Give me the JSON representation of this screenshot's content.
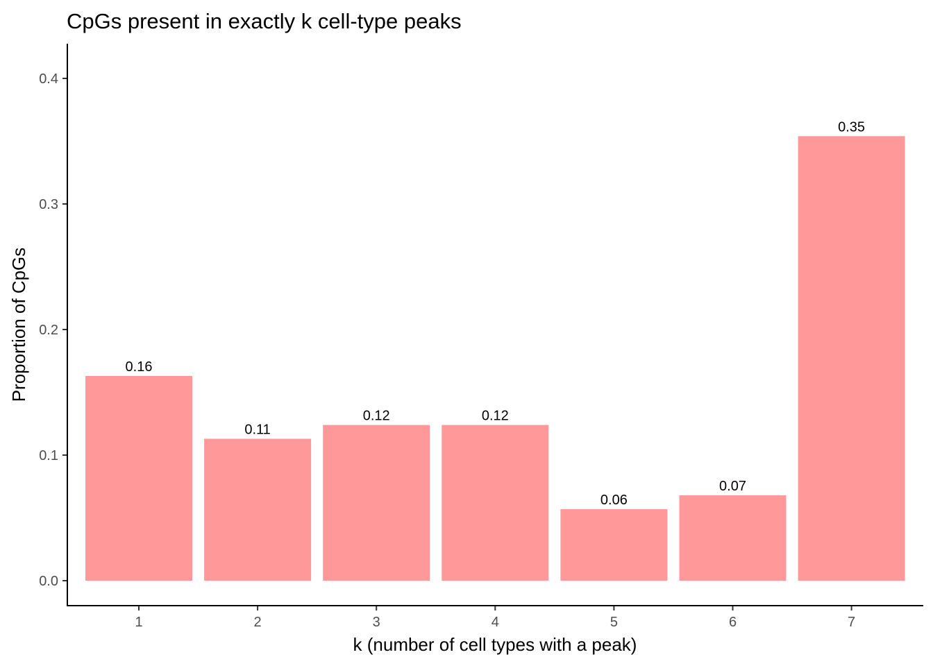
{
  "chart_data": {
    "type": "bar",
    "title": "CpGs present in exactly k cell-type peaks",
    "xlabel": "k (number of cell types with a peak)",
    "ylabel": "Proportion of CpGs",
    "categories": [
      "1",
      "2",
      "3",
      "4",
      "5",
      "6",
      "7"
    ],
    "values": [
      0.163,
      0.113,
      0.124,
      0.124,
      0.057,
      0.068,
      0.354
    ],
    "data_labels": [
      "0.16",
      "0.11",
      "0.12",
      "0.12",
      "0.06",
      "0.07",
      "0.35"
    ],
    "yticks": [
      0.0,
      0.1,
      0.2,
      0.3,
      0.4
    ],
    "ytick_labels": [
      "0.0",
      "0.1",
      "0.2",
      "0.3",
      "0.4"
    ],
    "ylim": [
      -0.02,
      0.427
    ],
    "bar_color": "#ff9999",
    "grid": false,
    "legend": "none"
  }
}
